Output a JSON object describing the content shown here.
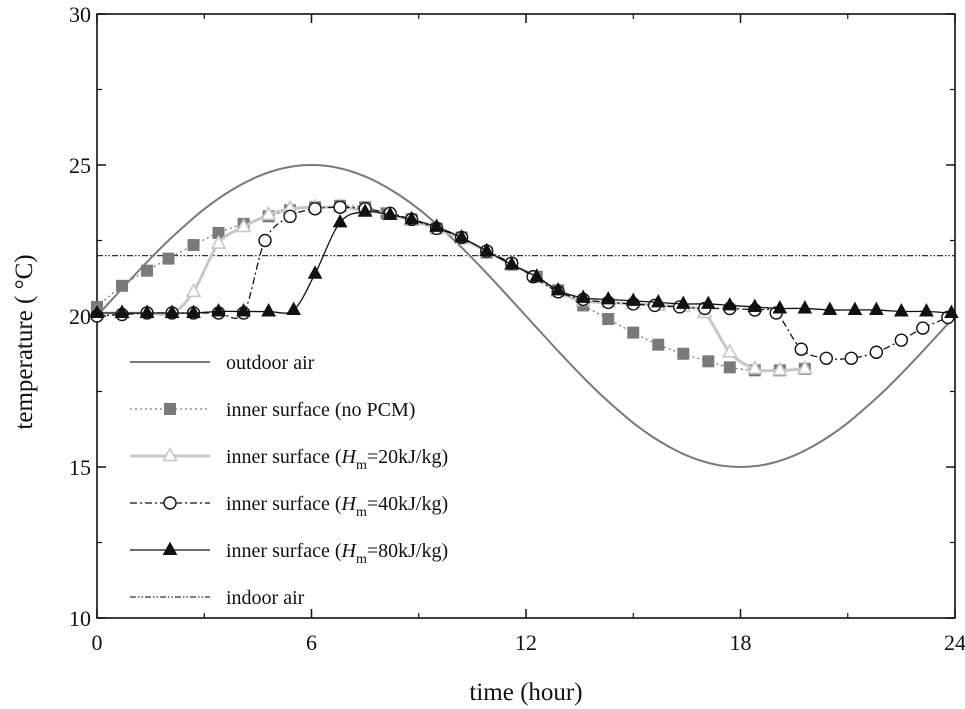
{
  "chart_data": {
    "type": "line",
    "title": "",
    "xlabel": "time (hour)",
    "ylabel": "temperature ( °C)",
    "xlim": [
      0,
      24
    ],
    "ylim": [
      10,
      30
    ],
    "xticks": [
      0,
      6,
      12,
      18,
      24
    ],
    "yticks": [
      10,
      15,
      20,
      25,
      30
    ],
    "grid": false,
    "legend_position": "bottom-left",
    "series": [
      {
        "name": "outdoor air",
        "legend_label": "outdoor air",
        "style": "solid",
        "marker": "none",
        "color": "#7a7a7a",
        "x": [
          0,
          0.5,
          1,
          1.5,
          2,
          2.5,
          3,
          3.5,
          4,
          4.5,
          5,
          5.5,
          6,
          6.5,
          7,
          7.5,
          8,
          8.5,
          9,
          9.5,
          10,
          10.5,
          11,
          11.5,
          12,
          12.5,
          13,
          13.5,
          14,
          14.5,
          15,
          15.5,
          16,
          16.5,
          17,
          17.5,
          18,
          18.5,
          19,
          19.5,
          20,
          20.5,
          21,
          21.5,
          22,
          22.5,
          23,
          23.5,
          24
        ],
        "y": [
          20.0,
          20.65,
          21.29,
          21.91,
          22.5,
          23.04,
          23.54,
          23.97,
          24.33,
          24.62,
          24.83,
          24.96,
          25.0,
          24.96,
          24.83,
          24.62,
          24.33,
          23.97,
          23.54,
          23.04,
          22.5,
          21.91,
          21.29,
          20.65,
          20.0,
          19.35,
          18.71,
          18.09,
          17.5,
          16.96,
          16.46,
          16.03,
          15.67,
          15.38,
          15.17,
          15.04,
          15.0,
          15.04,
          15.17,
          15.38,
          15.67,
          16.03,
          16.46,
          16.96,
          17.5,
          18.09,
          18.71,
          19.35,
          20.0
        ]
      },
      {
        "name": "inner surface (no PCM)",
        "legend_label": "inner surface (no PCM)",
        "style": "dotted",
        "marker": "square",
        "color": "#7a7a7a",
        "x": [
          0,
          0.7,
          1.4,
          2.0,
          2.7,
          3.4,
          4.1,
          4.8,
          5.4,
          6.1,
          6.8,
          7.5,
          8.1,
          8.8,
          9.5,
          10.2,
          10.9,
          11.6,
          12.3,
          12.9,
          13.6,
          14.3,
          15.0,
          15.7,
          16.4,
          17.1,
          17.7,
          18.4,
          19.1,
          19.8
        ],
        "y": [
          20.3,
          21.0,
          21.5,
          21.9,
          22.35,
          22.75,
          23.05,
          23.3,
          23.5,
          23.6,
          23.65,
          23.6,
          23.4,
          23.2,
          22.9,
          22.6,
          22.1,
          21.7,
          21.3,
          20.85,
          20.35,
          19.9,
          19.45,
          19.05,
          18.75,
          18.5,
          18.3,
          18.2,
          18.2,
          18.25
        ]
      },
      {
        "name": "inner surface (Hm=20kJ/kg)",
        "legend_label": "inner surface (",
        "legend_var": "H",
        "legend_sub": "m",
        "legend_tail": "=20kJ/kg)",
        "style": "solid",
        "marker": "triangle-open",
        "color": "#c8c8c8",
        "x": [
          0,
          0.7,
          1.4,
          2.1,
          2.7,
          3.4,
          4.1,
          4.8,
          5.4,
          6.1,
          6.8,
          7.5,
          8.2,
          8.8,
          9.5,
          10.2,
          10.9,
          11.6,
          12.3,
          12.9,
          13.6,
          14.3,
          15.0,
          15.7,
          16.4,
          17.0,
          17.7,
          18.4,
          19.1,
          19.8
        ],
        "y": [
          20.1,
          20.1,
          20.1,
          20.1,
          20.8,
          22.4,
          22.95,
          23.35,
          23.55,
          23.6,
          23.6,
          23.5,
          23.35,
          23.15,
          22.9,
          22.55,
          22.15,
          21.7,
          21.3,
          20.8,
          20.5,
          20.45,
          20.4,
          20.35,
          20.3,
          20.1,
          18.8,
          18.25,
          18.2,
          18.25
        ]
      },
      {
        "name": "inner surface (Hm=40kJ/kg)",
        "legend_label": "inner surface (",
        "legend_var": "H",
        "legend_sub": "m",
        "legend_tail": "=40kJ/kg)",
        "style": "dash-dot",
        "marker": "circle-open",
        "color": "#111111",
        "x": [
          0,
          0.7,
          1.4,
          2.1,
          2.7,
          3.4,
          4.1,
          4.7,
          5.4,
          6.1,
          6.8,
          7.5,
          8.2,
          8.8,
          9.5,
          10.2,
          10.9,
          11.6,
          12.2,
          12.9,
          13.6,
          14.3,
          15.0,
          15.6,
          16.3,
          17.0,
          17.7,
          18.4,
          19.0,
          19.7,
          20.4,
          21.1,
          21.8,
          22.5,
          23.1,
          23.8
        ],
        "y": [
          20.0,
          20.05,
          20.1,
          20.1,
          20.1,
          20.1,
          20.1,
          22.5,
          23.3,
          23.55,
          23.6,
          23.55,
          23.4,
          23.2,
          22.9,
          22.6,
          22.15,
          21.75,
          21.3,
          20.8,
          20.55,
          20.45,
          20.4,
          20.35,
          20.3,
          20.25,
          20.25,
          20.2,
          20.1,
          18.9,
          18.6,
          18.6,
          18.8,
          19.2,
          19.6,
          19.95
        ]
      },
      {
        "name": "inner surface (Hm=80kJ/kg)",
        "legend_label": "inner surface (",
        "legend_var": "H",
        "legend_sub": "m",
        "legend_tail": "=80kJ/kg)",
        "style": "solid",
        "marker": "triangle-filled",
        "color": "#111111",
        "x": [
          0,
          0.7,
          1.4,
          2.1,
          2.7,
          3.4,
          4.1,
          4.8,
          5.5,
          6.1,
          6.8,
          7.5,
          8.2,
          8.8,
          9.5,
          10.2,
          10.9,
          11.6,
          12.3,
          12.9,
          13.6,
          14.3,
          15.0,
          15.7,
          16.4,
          17.1,
          17.7,
          18.4,
          19.1,
          19.8,
          20.5,
          21.2,
          21.8,
          22.5,
          23.2,
          23.9
        ],
        "y": [
          20.1,
          20.1,
          20.1,
          20.1,
          20.1,
          20.15,
          20.15,
          20.15,
          20.2,
          21.4,
          23.1,
          23.45,
          23.35,
          23.2,
          22.95,
          22.6,
          22.15,
          21.7,
          21.3,
          20.85,
          20.6,
          20.55,
          20.5,
          20.45,
          20.4,
          20.4,
          20.35,
          20.3,
          20.25,
          20.25,
          20.2,
          20.2,
          20.2,
          20.15,
          20.15,
          20.1
        ]
      },
      {
        "name": "indoor air",
        "legend_label": "indoor air",
        "style": "dash-dot-dot",
        "marker": "none",
        "color": "#333333",
        "x": [
          0,
          24
        ],
        "y": [
          22,
          22
        ]
      }
    ]
  }
}
